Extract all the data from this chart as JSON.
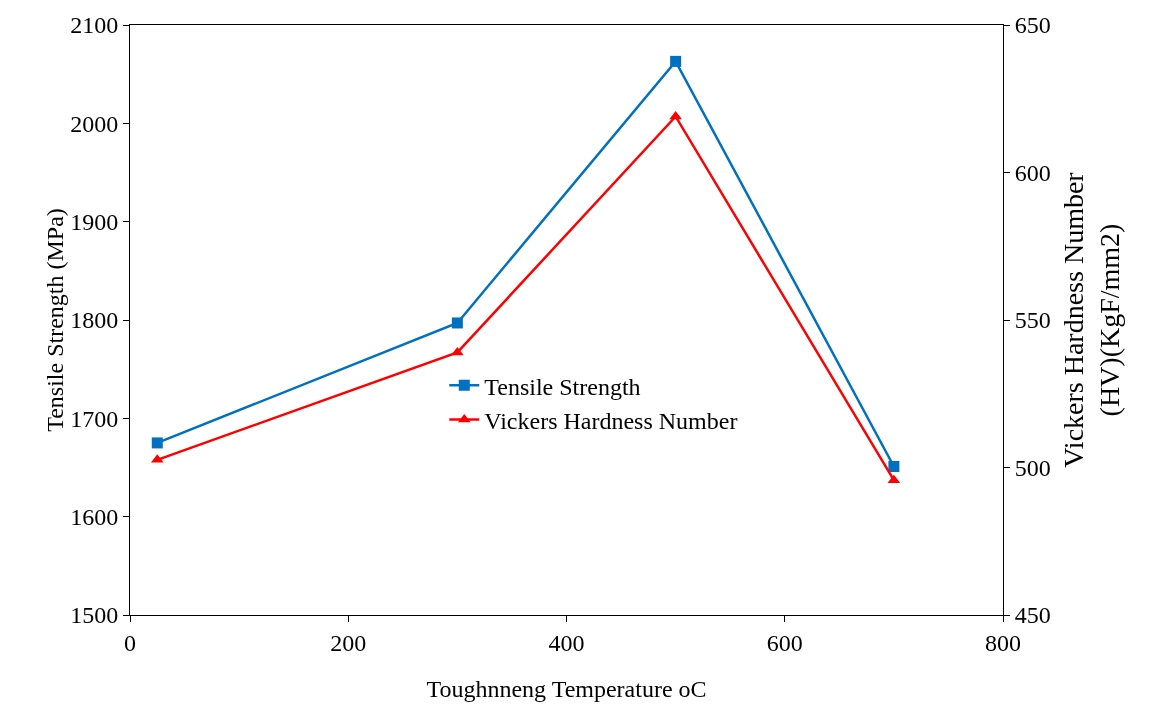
{
  "chart_data": {
    "type": "line",
    "xlabel": "Toughnneng Temperature oC",
    "ylabel": "Tensile Strength (MPa)",
    "y2label": "Vickers Hardness Number\n(HV)(KgF/mm2)",
    "x": [
      25,
      300,
      500,
      700
    ],
    "series": [
      {
        "name": "Tensile Strength",
        "color": "#0070c0",
        "marker": "square",
        "values": [
          1675,
          1797,
          2063,
          1651
        ]
      },
      {
        "name": "Vickers Hardness Number",
        "color": "#ff0000",
        "marker": "triangle",
        "axis": "y2",
        "values": [
          502.6,
          539,
          619,
          495.7
        ]
      }
    ],
    "xlim": [
      0,
      800
    ],
    "xticks": [
      0,
      200,
      400,
      600,
      800
    ],
    "ylim": [
      1500,
      2100
    ],
    "yticks": [
      1500,
      1600,
      1700,
      1800,
      1900,
      2000,
      2100
    ],
    "y2lim": [
      450,
      650
    ],
    "y2ticks": [
      450,
      500,
      550,
      600,
      650
    ],
    "grid": false,
    "legend": "center",
    "line_style": "solid"
  }
}
